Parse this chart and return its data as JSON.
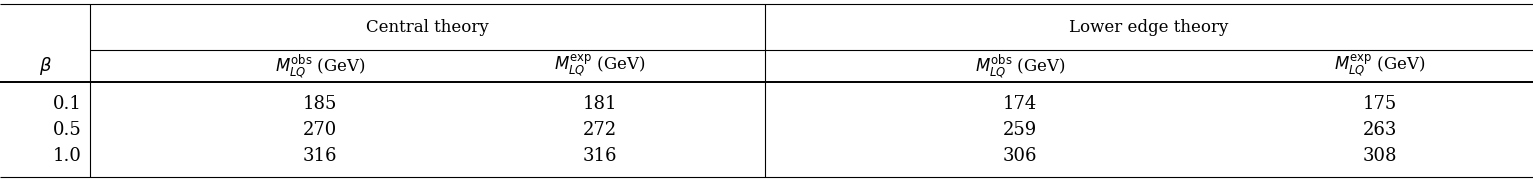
{
  "beta_values": [
    "0.1",
    "0.5",
    "1.0"
  ],
  "central_obs": [
    "185",
    "270",
    "316"
  ],
  "central_exp": [
    "181",
    "272",
    "316"
  ],
  "lower_obs": [
    "174",
    "259",
    "306"
  ],
  "lower_exp": [
    "175",
    "263",
    "308"
  ],
  "group_central": "Central theory",
  "group_lower": "Lower edge theory",
  "bg_color": "#ffffff",
  "line_color": "#000000",
  "text_color": "#000000",
  "data_fontsize": 13,
  "header_fontsize": 12,
  "group_fontsize": 12
}
